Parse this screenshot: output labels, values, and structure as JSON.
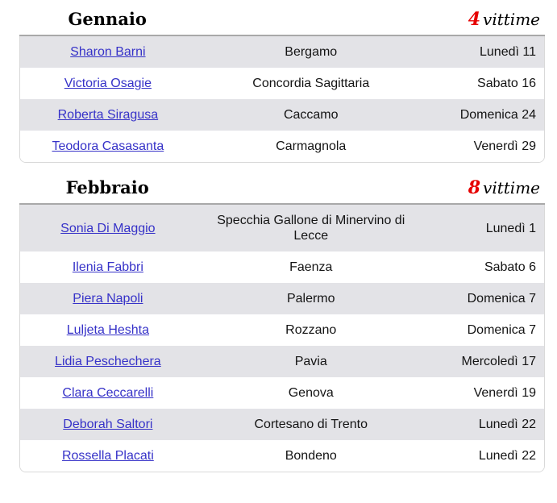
{
  "colors": {
    "accent_red": "#e60000",
    "link": "#3632c8",
    "row_alt": "#e3e3e7",
    "header_border": "#a9a9a9",
    "table_border": "#d9d9d9"
  },
  "months": [
    {
      "name": "Gennaio",
      "victim_count": "4",
      "victim_label": "vittime",
      "rows": [
        {
          "name": "Sharon Barni",
          "place": "Bergamo",
          "day": "Lunedì 11"
        },
        {
          "name": "Victoria Osagie",
          "place": "Concordia Sagittaria",
          "day": "Sabato 16"
        },
        {
          "name": "Roberta Siragusa",
          "place": "Caccamo",
          "day": "Domenica 24"
        },
        {
          "name": "Teodora Casasanta",
          "place": "Carmagnola",
          "day": "Venerdì 29"
        }
      ]
    },
    {
      "name": "Febbraio",
      "victim_count": "8",
      "victim_label": "vittime",
      "rows": [
        {
          "name": "Sonia Di Maggio",
          "place": "Specchia Gallone di Minervino di Lecce",
          "day": "Lunedì 1"
        },
        {
          "name": "Ilenia Fabbri",
          "place": "Faenza",
          "day": "Sabato 6"
        },
        {
          "name": "Piera Napoli",
          "place": "Palermo",
          "day": "Domenica 7"
        },
        {
          "name": "Luljeta Heshta",
          "place": "Rozzano",
          "day": "Domenica 7"
        },
        {
          "name": "Lidia Peschechera",
          "place": "Pavia",
          "day": "Mercoledì 17"
        },
        {
          "name": "Clara Ceccarelli",
          "place": "Genova",
          "day": "Venerdì 19"
        },
        {
          "name": "Deborah Saltori",
          "place": "Cortesano di Trento",
          "day": "Lunedì 22"
        },
        {
          "name": "Rossella Placati",
          "place": "Bondeno",
          "day": "Lunedì 22"
        }
      ]
    }
  ]
}
